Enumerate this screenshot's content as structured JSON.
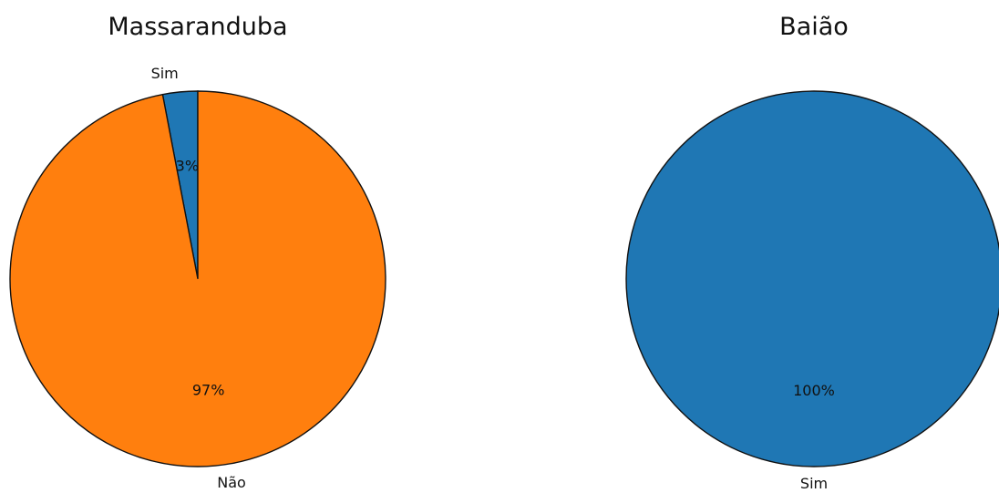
{
  "chart_data": [
    {
      "type": "pie",
      "title": "Massaranduba",
      "categories": [
        "Sim",
        "Não"
      ],
      "values": [
        3,
        97
      ],
      "percent_labels": [
        "3%",
        "97%"
      ],
      "colors": [
        "#1f77b4",
        "#ff7f0e"
      ],
      "start_angle_deg": 90,
      "direction": "counterclockwise"
    },
    {
      "type": "pie",
      "title": "Baião",
      "categories": [
        "Sim"
      ],
      "values": [
        100
      ],
      "percent_labels": [
        "100%"
      ],
      "colors": [
        "#1f77b4"
      ],
      "start_angle_deg": 90,
      "direction": "counterclockwise"
    }
  ]
}
